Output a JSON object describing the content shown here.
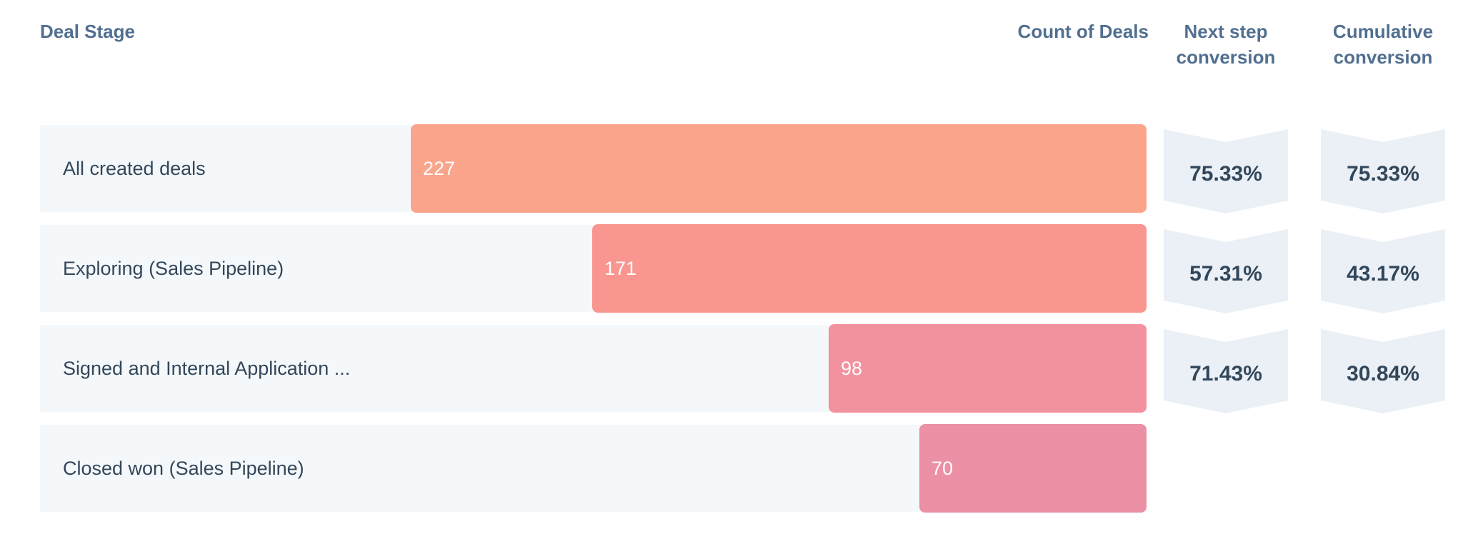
{
  "chart_data": {
    "type": "bar",
    "variant": "funnel",
    "title": "",
    "xlabel": "",
    "ylabel": "",
    "grid": false,
    "legend_position": "none",
    "columns": {
      "deal_stage": "Deal Stage",
      "count_of_deals": "Count of Deals",
      "next_step_conversion": "Next step\nconversion",
      "cumulative_conversion": "Cumulative\nconversion"
    },
    "categories": [
      "All created deals",
      "Exploring (Sales Pipeline)",
      "Signed and Internal Application ...",
      "Closed won (Sales Pipeline)"
    ],
    "values": [
      227,
      171,
      98,
      70
    ],
    "series": [
      {
        "name": "Next step conversion",
        "values": [
          "75.33%",
          "57.31%",
          "71.43%",
          null
        ]
      },
      {
        "name": "Cumulative conversion",
        "values": [
          "75.33%",
          "43.17%",
          "30.84%",
          null
        ]
      }
    ],
    "bar_colors": [
      "#fba48c",
      "#f9968f",
      "#f1929e",
      "#ec90a6"
    ],
    "colors": {
      "header_text": "#516f90",
      "label_text": "#33475b",
      "bar_value_text": "#ffffff",
      "row_background": "#f5f8fa",
      "chevron_background": "#eaf0f6",
      "chevron_text": "#33475b",
      "page_background": "#ffffff"
    }
  }
}
